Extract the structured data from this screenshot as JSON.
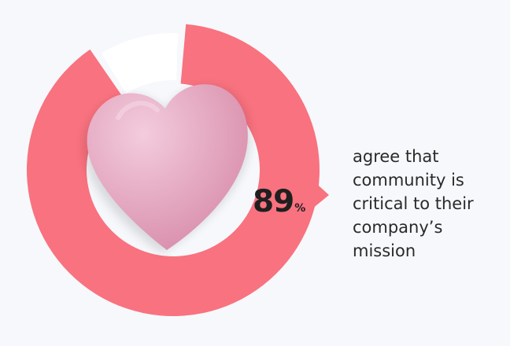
{
  "chart_data": {
    "type": "pie",
    "style": "donut",
    "values": [
      89,
      11
    ],
    "highlight_value": 89,
    "value_label": "89",
    "unit_label": "%",
    "caption_lines": [
      "agree that",
      "community is",
      "critical to their",
      "company’s",
      "mission"
    ],
    "colors": {
      "highlight": "#f9727f",
      "remainder": "#ffffff",
      "background": "#f6f8fb",
      "text": "#1f1f1f",
      "heart_light": "#f3ccdc",
      "heart_dark": "#d78aa9"
    },
    "center_icon": "heart-icon"
  }
}
